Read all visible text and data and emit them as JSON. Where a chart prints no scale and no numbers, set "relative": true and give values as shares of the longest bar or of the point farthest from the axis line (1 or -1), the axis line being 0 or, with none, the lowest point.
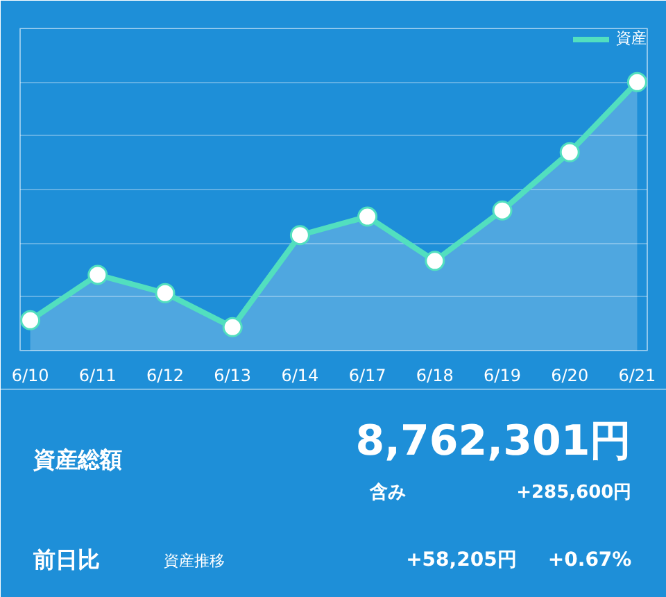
{
  "chart_data": {
    "type": "area",
    "relative": true,
    "categories": [
      "6/10",
      "6/11",
      "6/12",
      "6/13",
      "6/14",
      "6/17",
      "6/18",
      "6/19",
      "6/20",
      "6/21"
    ],
    "series": [
      {
        "name": "資産",
        "color": "#52dfbf",
        "values": [
          0.113,
          0.282,
          0.214,
          0.087,
          0.43,
          0.499,
          0.334,
          0.522,
          0.739,
          1.0
        ]
      }
    ],
    "marker": "circle",
    "grid": "y",
    "legend": "top right",
    "annotations": [
      "資産総額",
      "8,762,301円",
      "含み",
      "+285,600円",
      "前日比",
      "資産推移",
      "+58,205円",
      "+0.67%"
    ]
  }
}
